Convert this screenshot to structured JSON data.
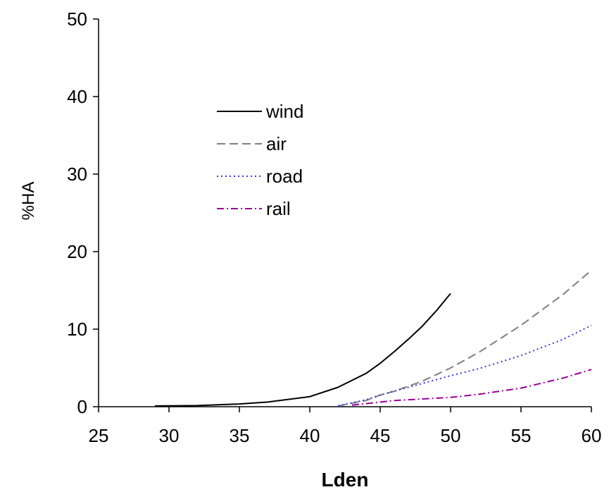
{
  "chart_data": {
    "type": "line",
    "xlabel": "Lden",
    "ylabel": "%HA",
    "xlim": [
      25,
      60
    ],
    "ylim": [
      0,
      50
    ],
    "xticks": [
      25,
      30,
      35,
      40,
      45,
      50,
      55,
      60
    ],
    "yticks": [
      0,
      10,
      20,
      30,
      40,
      50
    ],
    "grid": false,
    "legend_position": "upper-left, inside plot",
    "series": [
      {
        "name": "wind",
        "color": "#000000",
        "dash": "solid",
        "x": [
          29,
          32,
          35,
          37,
          40,
          42,
          44,
          45,
          46,
          47,
          48,
          49,
          50
        ],
        "y": [
          0.1,
          0.15,
          0.35,
          0.6,
          1.3,
          2.5,
          4.3,
          5.6,
          7.1,
          8.7,
          10.4,
          12.4,
          14.6
        ]
      },
      {
        "name": "air",
        "color": "#808080",
        "dash": "dashed",
        "x": [
          42,
          44,
          45,
          46,
          48,
          50,
          52,
          55,
          58,
          60
        ],
        "y": [
          0.1,
          0.8,
          1.5,
          2.0,
          3.3,
          5.0,
          7.0,
          10.5,
          14.5,
          17.6
        ]
      },
      {
        "name": "road",
        "color": "#3333ff",
        "dash": "dotted",
        "x": [
          42,
          44,
          45,
          46,
          48,
          50,
          52,
          55,
          58,
          60
        ],
        "y": [
          0.1,
          0.9,
          1.5,
          2.0,
          3.0,
          4.0,
          4.9,
          6.6,
          8.7,
          10.5
        ]
      },
      {
        "name": "rail",
        "color": "#990099",
        "dash": "dash-dot",
        "x": [
          43,
          44,
          45,
          46,
          48,
          50,
          52,
          55,
          58,
          60
        ],
        "y": [
          0.2,
          0.4,
          0.6,
          0.8,
          1.0,
          1.2,
          1.6,
          2.4,
          3.7,
          4.8
        ]
      }
    ]
  }
}
